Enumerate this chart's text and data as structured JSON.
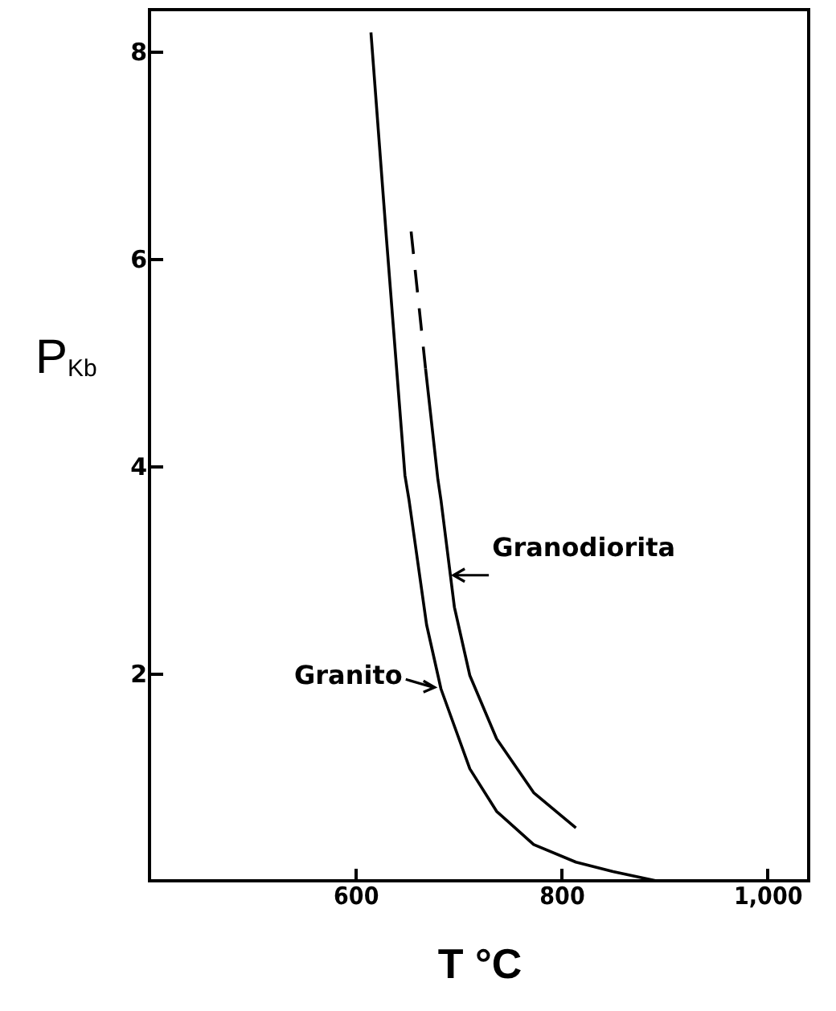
{
  "chart_data": {
    "type": "line",
    "xlabel": "T °C",
    "ylabel": "P$_{Kb}$",
    "xlim": [
      400,
      1040
    ],
    "ylim": [
      0,
      8.4
    ],
    "xticks": [
      600,
      800,
      {
        "value": 1000,
        "label": "1,000"
      }
    ],
    "yticks": [
      2,
      4,
      6,
      8
    ],
    "grid": false,
    "marker": "none",
    "series": [
      {
        "color": "#000000",
        "line_style": "solid",
        "x": [
          615,
          630,
          648,
          652,
          669,
          683,
          711,
          737,
          773,
          814,
          850,
          892
        ],
        "values": [
          8.18,
          6.2,
          3.91,
          3.67,
          2.47,
          1.85,
          1.08,
          0.67,
          0.35,
          0.18,
          0.09,
          0
        ]
      },
      {
        "color": "#000000",
        "line_style": "solid",
        "x": [
          668,
          680,
          683,
          696,
          711,
          737,
          773,
          814
        ],
        "values": [
          4.94,
          3.87,
          3.67,
          2.64,
          1.98,
          1.37,
          0.85,
          0.51
        ]
      },
      {
        "color": "#000000",
        "line_style": "dashed",
        "x": [
          654,
          668
        ],
        "values": [
          6.26,
          4.94
        ]
      }
    ],
    "annotations": [
      {
        "text": "Granito",
        "x": 680,
        "y": 1.85
      },
      {
        "text": "Granodiorita",
        "x": 692,
        "y": 2.9
      }
    ]
  }
}
